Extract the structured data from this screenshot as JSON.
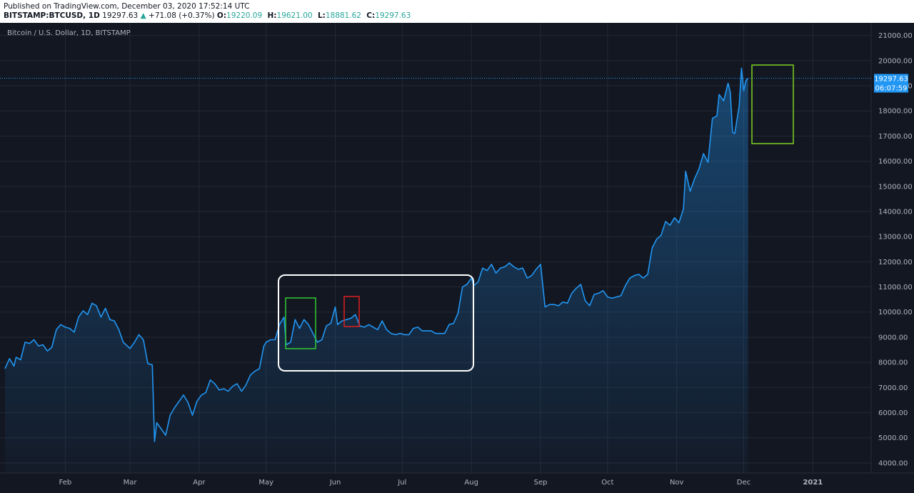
{
  "header": {
    "published": "Published on TradingView.com, December 03, 2020 17:52:14 UTC",
    "symbol": "BITSTAMP:BTCUSD, 1D",
    "last": "19297.63",
    "arrow": "▲",
    "change": "+71.08 (+0.37%)",
    "ohlc": [
      {
        "k": "O:",
        "v": "19220.09"
      },
      {
        "k": "H:",
        "v": "19621.00"
      },
      {
        "k": "L:",
        "v": "18881.62"
      },
      {
        "k": "C:",
        "v": "19297.63"
      }
    ]
  },
  "chart_title": "Bitcoin / U.S. Dollar, 1D, BITSTAMP",
  "price_tag": {
    "price": "19297.63",
    "countdown": "06:07:59"
  },
  "colors": {
    "background": "#131722",
    "grid": "#242833",
    "line": "#2196f3",
    "white_box": "#ffffff",
    "green_box": "#33cc33",
    "red_box": "#dd1f1f",
    "lime_box": "#7ed321"
  },
  "chart_data": {
    "type": "area",
    "title": "Bitcoin / U.S. Dollar, 1D, BITSTAMP",
    "x_tick_labels": [
      "Feb",
      "Mar",
      "Apr",
      "May",
      "Jun",
      "Jul",
      "Aug",
      "Sep",
      "Oct",
      "Nov",
      "Dec",
      "2021"
    ],
    "x_tick_dates": [
      "2020-02-01",
      "2020-03-01",
      "2020-04-01",
      "2020-05-01",
      "2020-06-01",
      "2020-07-01",
      "2020-08-01",
      "2020-09-01",
      "2020-10-01",
      "2020-11-01",
      "2020-12-01",
      "2021-01-01"
    ],
    "y_tick_labels": [
      "4000.00",
      "5000.00",
      "6000.00",
      "7000.00",
      "8000.00",
      "9000.00",
      "10000.00",
      "11000.00",
      "12000.00",
      "13000.00",
      "14000.00",
      "15000.00",
      "16000.00",
      "17000.00",
      "18000.00",
      "19000.00",
      "20000.00",
      "21000.00"
    ],
    "ylim": [
      3600,
      21500
    ],
    "xlim": [
      "2020-01-05",
      "2021-01-22"
    ],
    "grid": true,
    "series": [
      {
        "points": [
          [
            "2020-01-05",
            7750
          ],
          [
            "2020-01-07",
            8150
          ],
          [
            "2020-01-09",
            7850
          ],
          [
            "2020-01-10",
            8200
          ],
          [
            "2020-01-12",
            8100
          ],
          [
            "2020-01-14",
            8800
          ],
          [
            "2020-01-16",
            8750
          ],
          [
            "2020-01-18",
            8900
          ],
          [
            "2020-01-20",
            8650
          ],
          [
            "2020-01-22",
            8700
          ],
          [
            "2020-01-24",
            8450
          ],
          [
            "2020-01-26",
            8600
          ],
          [
            "2020-01-28",
            9300
          ],
          [
            "2020-01-30",
            9500
          ],
          [
            "2020-02-01",
            9400
          ],
          [
            "2020-02-03",
            9350
          ],
          [
            "2020-02-05",
            9200
          ],
          [
            "2020-02-07",
            9800
          ],
          [
            "2020-02-09",
            10050
          ],
          [
            "2020-02-11",
            9900
          ],
          [
            "2020-02-13",
            10350
          ],
          [
            "2020-02-15",
            10250
          ],
          [
            "2020-02-17",
            9800
          ],
          [
            "2020-02-19",
            10150
          ],
          [
            "2020-02-21",
            9700
          ],
          [
            "2020-02-23",
            9650
          ],
          [
            "2020-02-25",
            9300
          ],
          [
            "2020-02-27",
            8800
          ],
          [
            "2020-03-01",
            8550
          ],
          [
            "2020-03-03",
            8800
          ],
          [
            "2020-03-05",
            9100
          ],
          [
            "2020-03-07",
            8900
          ],
          [
            "2020-03-09",
            7950
          ],
          [
            "2020-03-11",
            7900
          ],
          [
            "2020-03-12",
            4850
          ],
          [
            "2020-03-13",
            5600
          ],
          [
            "2020-03-15",
            5350
          ],
          [
            "2020-03-17",
            5100
          ],
          [
            "2020-03-19",
            5900
          ],
          [
            "2020-03-21",
            6200
          ],
          [
            "2020-03-23",
            6450
          ],
          [
            "2020-03-25",
            6700
          ],
          [
            "2020-03-27",
            6400
          ],
          [
            "2020-03-29",
            5900
          ],
          [
            "2020-03-31",
            6450
          ],
          [
            "2020-04-02",
            6700
          ],
          [
            "2020-04-04",
            6800
          ],
          [
            "2020-04-06",
            7300
          ],
          [
            "2020-04-08",
            7150
          ],
          [
            "2020-04-10",
            6900
          ],
          [
            "2020-04-12",
            6950
          ],
          [
            "2020-04-14",
            6850
          ],
          [
            "2020-04-16",
            7050
          ],
          [
            "2020-04-18",
            7150
          ],
          [
            "2020-04-20",
            6850
          ],
          [
            "2020-04-22",
            7100
          ],
          [
            "2020-04-24",
            7500
          ],
          [
            "2020-04-26",
            7650
          ],
          [
            "2020-04-28",
            7750
          ],
          [
            "2020-04-30",
            8650
          ],
          [
            "2020-05-01",
            8800
          ],
          [
            "2020-05-03",
            8900
          ],
          [
            "2020-05-05",
            8900
          ],
          [
            "2020-05-07",
            9500
          ],
          [
            "2020-05-09",
            9800
          ],
          [
            "2020-05-10",
            8700
          ],
          [
            "2020-05-12",
            8800
          ],
          [
            "2020-05-14",
            9700
          ],
          [
            "2020-05-16",
            9350
          ],
          [
            "2020-05-18",
            9700
          ],
          [
            "2020-05-20",
            9500
          ],
          [
            "2020-05-22",
            9150
          ],
          [
            "2020-05-24",
            8800
          ],
          [
            "2020-05-26",
            8900
          ],
          [
            "2020-05-28",
            9450
          ],
          [
            "2020-05-30",
            9550
          ],
          [
            "2020-06-01",
            10200
          ],
          [
            "2020-06-02",
            9500
          ],
          [
            "2020-06-04",
            9650
          ],
          [
            "2020-06-06",
            9700
          ],
          [
            "2020-06-08",
            9750
          ],
          [
            "2020-06-10",
            9900
          ],
          [
            "2020-06-12",
            9450
          ],
          [
            "2020-06-14",
            9400
          ],
          [
            "2020-06-16",
            9500
          ],
          [
            "2020-06-18",
            9400
          ],
          [
            "2020-06-20",
            9300
          ],
          [
            "2020-06-22",
            9650
          ],
          [
            "2020-06-24",
            9300
          ],
          [
            "2020-06-26",
            9150
          ],
          [
            "2020-06-28",
            9100
          ],
          [
            "2020-06-30",
            9150
          ],
          [
            "2020-07-02",
            9100
          ],
          [
            "2020-07-04",
            9100
          ],
          [
            "2020-07-06",
            9350
          ],
          [
            "2020-07-08",
            9400
          ],
          [
            "2020-07-10",
            9250
          ],
          [
            "2020-07-12",
            9250
          ],
          [
            "2020-07-14",
            9250
          ],
          [
            "2020-07-16",
            9150
          ],
          [
            "2020-07-18",
            9150
          ],
          [
            "2020-07-20",
            9150
          ],
          [
            "2020-07-22",
            9500
          ],
          [
            "2020-07-24",
            9550
          ],
          [
            "2020-07-26",
            9950
          ],
          [
            "2020-07-28",
            11000
          ],
          [
            "2020-07-30",
            11100
          ],
          [
            "2020-08-01",
            11350
          ],
          [
            "2020-08-02",
            11050
          ],
          [
            "2020-08-04",
            11200
          ],
          [
            "2020-08-06",
            11750
          ],
          [
            "2020-08-08",
            11650
          ],
          [
            "2020-08-10",
            11900
          ],
          [
            "2020-08-12",
            11550
          ],
          [
            "2020-08-14",
            11750
          ],
          [
            "2020-08-16",
            11800
          ],
          [
            "2020-08-18",
            11950
          ],
          [
            "2020-08-20",
            11800
          ],
          [
            "2020-08-22",
            11700
          ],
          [
            "2020-08-24",
            11750
          ],
          [
            "2020-08-26",
            11350
          ],
          [
            "2020-08-28",
            11450
          ],
          [
            "2020-08-30",
            11700
          ],
          [
            "2020-09-01",
            11900
          ],
          [
            "2020-09-03",
            10200
          ],
          [
            "2020-09-05",
            10300
          ],
          [
            "2020-09-07",
            10300
          ],
          [
            "2020-09-09",
            10250
          ],
          [
            "2020-09-11",
            10400
          ],
          [
            "2020-09-13",
            10350
          ],
          [
            "2020-09-15",
            10750
          ],
          [
            "2020-09-17",
            10950
          ],
          [
            "2020-09-19",
            11100
          ],
          [
            "2020-09-21",
            10450
          ],
          [
            "2020-09-23",
            10250
          ],
          [
            "2020-09-25",
            10700
          ],
          [
            "2020-09-27",
            10750
          ],
          [
            "2020-09-29",
            10850
          ],
          [
            "2020-10-01",
            10600
          ],
          [
            "2020-10-03",
            10550
          ],
          [
            "2020-10-05",
            10600
          ],
          [
            "2020-10-07",
            10650
          ],
          [
            "2020-10-09",
            11050
          ],
          [
            "2020-10-11",
            11350
          ],
          [
            "2020-10-13",
            11450
          ],
          [
            "2020-10-15",
            11500
          ],
          [
            "2020-10-17",
            11350
          ],
          [
            "2020-10-19",
            11500
          ],
          [
            "2020-10-21",
            12550
          ],
          [
            "2020-10-23",
            12900
          ],
          [
            "2020-10-25",
            13050
          ],
          [
            "2020-10-27",
            13600
          ],
          [
            "2020-10-29",
            13450
          ],
          [
            "2020-10-31",
            13750
          ],
          [
            "2020-11-02",
            13550
          ],
          [
            "2020-11-04",
            14100
          ],
          [
            "2020-11-05",
            15600
          ],
          [
            "2020-11-07",
            14800
          ],
          [
            "2020-11-09",
            15300
          ],
          [
            "2020-11-11",
            15700
          ],
          [
            "2020-11-13",
            16300
          ],
          [
            "2020-11-15",
            15950
          ],
          [
            "2020-11-17",
            17700
          ],
          [
            "2020-11-19",
            17800
          ],
          [
            "2020-11-20",
            18650
          ],
          [
            "2020-11-22",
            18400
          ],
          [
            "2020-11-24",
            19100
          ],
          [
            "2020-11-25",
            18750
          ],
          [
            "2020-11-26",
            17150
          ],
          [
            "2020-11-27",
            17100
          ],
          [
            "2020-11-29",
            18200
          ],
          [
            "2020-11-30",
            19700
          ],
          [
            "2020-12-01",
            18800
          ],
          [
            "2020-12-02",
            19200
          ],
          [
            "2020-12-03",
            19297.63
          ]
        ]
      }
    ]
  }
}
